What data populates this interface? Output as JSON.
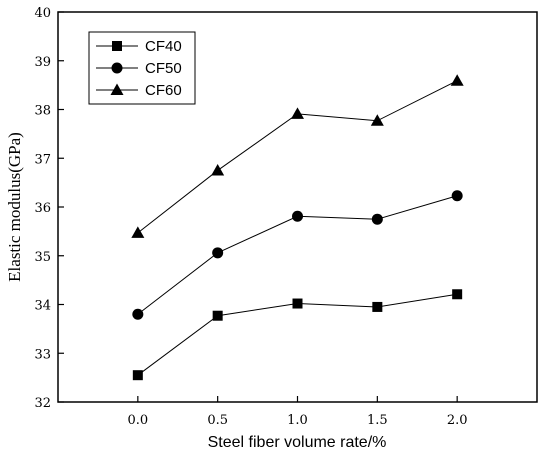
{
  "chart_data": {
    "type": "line",
    "xlabel": "Steel fiber volume rate/%",
    "ylabel": "Elastic modulus(GPa)",
    "x": [
      0.0,
      0.5,
      1.0,
      1.5,
      2.0
    ],
    "x_tick_labels": [
      "0.0",
      "0.5",
      "1.0",
      "1.5",
      "2.0"
    ],
    "xlim": [
      -0.5,
      2.5
    ],
    "ylim": [
      32,
      40
    ],
    "y_ticks": [
      32,
      33,
      34,
      35,
      36,
      37,
      38,
      39,
      40
    ],
    "y_tick_labels": [
      "32",
      "33",
      "34",
      "35",
      "36",
      "37",
      "38",
      "39",
      "40"
    ],
    "grid": false,
    "legend_position": "top-left",
    "series": [
      {
        "name": "CF40",
        "marker": "square",
        "values": [
          32.55,
          33.77,
          34.02,
          33.95,
          34.21
        ]
      },
      {
        "name": "CF50",
        "marker": "circle",
        "values": [
          33.8,
          35.06,
          35.81,
          35.75,
          36.23
        ]
      },
      {
        "name": "CF60",
        "marker": "triangle",
        "values": [
          35.47,
          36.75,
          37.91,
          37.77,
          38.59
        ]
      }
    ],
    "colors": {
      "line": "#000000",
      "marker": "#000000",
      "axis": "#000000"
    }
  }
}
